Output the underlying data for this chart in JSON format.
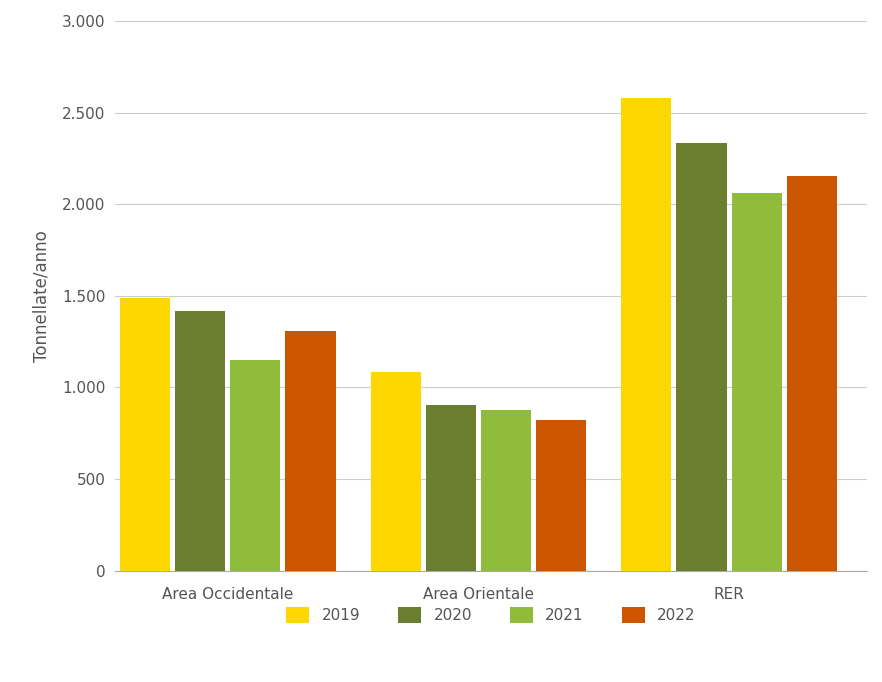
{
  "categories": [
    "Area Occidentale",
    "Area Orientale",
    "RER"
  ],
  "years": [
    "2019",
    "2020",
    "2021",
    "2022"
  ],
  "values": {
    "Area Occidentale": [
      1490,
      1420,
      1150,
      1310
    ],
    "Area Orientale": [
      1085,
      905,
      875,
      820
    ],
    "RER": [
      2580,
      2335,
      2060,
      2155
    ]
  },
  "colors": {
    "2019": "#FFD700",
    "2020": "#6B7D2E",
    "2021": "#8FBC3A",
    "2022": "#CC5500"
  },
  "ylabel": "Tonnellate/anno",
  "ylim": [
    0,
    3000
  ],
  "yticks": [
    0,
    500,
    1000,
    1500,
    2000,
    2500,
    3000
  ],
  "ytick_labels": [
    "0",
    "500",
    "1.000",
    "1.500",
    "2.000",
    "2.500",
    "3.000"
  ],
  "legend_labels": [
    "2019",
    "2020",
    "2021",
    "2022"
  ],
  "bar_width": 0.2,
  "background_color": "#FFFFFF",
  "grid_color": "#CCCCCC",
  "ylabel_fontsize": 12,
  "tick_fontsize": 11,
  "legend_fontsize": 11,
  "x_positions": [
    0.0,
    1.0,
    2.0
  ],
  "xlim": [
    -0.45,
    2.55
  ]
}
